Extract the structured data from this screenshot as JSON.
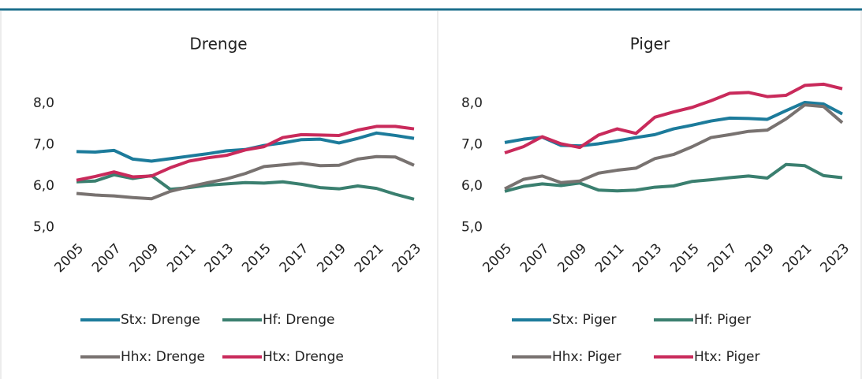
{
  "chart_data": [
    {
      "type": "line",
      "title": "Drenge",
      "categories": [
        "2005",
        null,
        "2007",
        null,
        "2009",
        null,
        "2011",
        null,
        "2013",
        null,
        "2015",
        null,
        "2017",
        null,
        "2019",
        null,
        "2021",
        null,
        "2023"
      ],
      "series": [
        {
          "name": "Stx: Drenge",
          "color": "#1c7b9b",
          "values": [
            6.83,
            6.82,
            6.86,
            6.65,
            6.6,
            6.66,
            6.72,
            6.78,
            6.85,
            6.88,
            6.98,
            7.04,
            7.12,
            7.13,
            7.04,
            7.15,
            7.28,
            7.22,
            7.15
          ]
        },
        {
          "name": "Hf: Drenge",
          "color": "#3a7f6f",
          "values": [
            6.1,
            6.12,
            6.27,
            6.18,
            6.25,
            5.92,
            5.96,
            6.02,
            6.05,
            6.08,
            6.07,
            6.1,
            6.04,
            5.96,
            5.93,
            6.0,
            5.94,
            5.8,
            5.68
          ]
        },
        {
          "name": "Hhx: Drenge",
          "color": "#787270",
          "values": [
            5.82,
            5.78,
            5.76,
            5.72,
            5.69,
            5.87,
            5.98,
            6.08,
            6.17,
            6.3,
            6.47,
            6.51,
            6.55,
            6.49,
            6.5,
            6.65,
            6.71,
            6.7,
            6.5
          ]
        },
        {
          "name": "Htx: Drenge",
          "color": "#c92a5b",
          "values": [
            6.14,
            6.23,
            6.34,
            6.22,
            6.24,
            6.44,
            6.6,
            6.68,
            6.74,
            6.87,
            6.95,
            7.17,
            7.24,
            7.23,
            7.22,
            7.35,
            7.44,
            7.44,
            7.38
          ]
        }
      ],
      "ylim": [
        5,
        8.6
      ],
      "yticks": [
        {
          "value": 5,
          "label": "5,0"
        },
        {
          "value": 6,
          "label": "6,0"
        },
        {
          "value": 7,
          "label": "7,0"
        },
        {
          "value": 8,
          "label": "8,0"
        }
      ],
      "grid": false
    },
    {
      "type": "line",
      "title": "Piger",
      "categories": [
        "2005",
        null,
        "2007",
        null,
        "2009",
        null,
        "2011",
        null,
        "2013",
        null,
        "2015",
        null,
        "2017",
        null,
        "2019",
        null,
        "2021",
        null,
        "2023"
      ],
      "series": [
        {
          "name": "Stx: Piger",
          "color": "#1c7b9b",
          "values": [
            7.05,
            7.13,
            7.18,
            6.98,
            6.97,
            7.02,
            7.09,
            7.17,
            7.24,
            7.38,
            7.47,
            7.57,
            7.64,
            7.63,
            7.61,
            7.82,
            8.02,
            7.98,
            7.74
          ]
        },
        {
          "name": "Hf: Piger",
          "color": "#3a7f6f",
          "values": [
            5.87,
            5.99,
            6.05,
            6.01,
            6.07,
            5.9,
            5.88,
            5.9,
            5.97,
            6.0,
            6.11,
            6.15,
            6.2,
            6.24,
            6.19,
            6.52,
            6.49,
            6.25,
            6.2
          ]
        },
        {
          "name": "Hhx: Piger",
          "color": "#787270",
          "values": [
            5.93,
            6.16,
            6.24,
            6.08,
            6.12,
            6.31,
            6.38,
            6.43,
            6.66,
            6.76,
            6.95,
            7.17,
            7.24,
            7.32,
            7.35,
            7.62,
            7.96,
            7.92,
            7.53
          ]
        },
        {
          "name": "Htx: Piger",
          "color": "#c92a5b",
          "values": [
            6.8,
            6.95,
            7.19,
            7.02,
            6.93,
            7.23,
            7.38,
            7.27,
            7.66,
            7.79,
            7.9,
            8.06,
            8.24,
            8.26,
            8.16,
            8.19,
            8.43,
            8.46,
            8.35
          ]
        }
      ],
      "ylim": [
        5,
        8.6
      ],
      "yticks": [
        {
          "value": 5,
          "label": "5,0"
        },
        {
          "value": 6,
          "label": "6,0"
        },
        {
          "value": 7,
          "label": "7,0"
        },
        {
          "value": 8,
          "label": "8,0"
        }
      ],
      "grid": false
    }
  ]
}
